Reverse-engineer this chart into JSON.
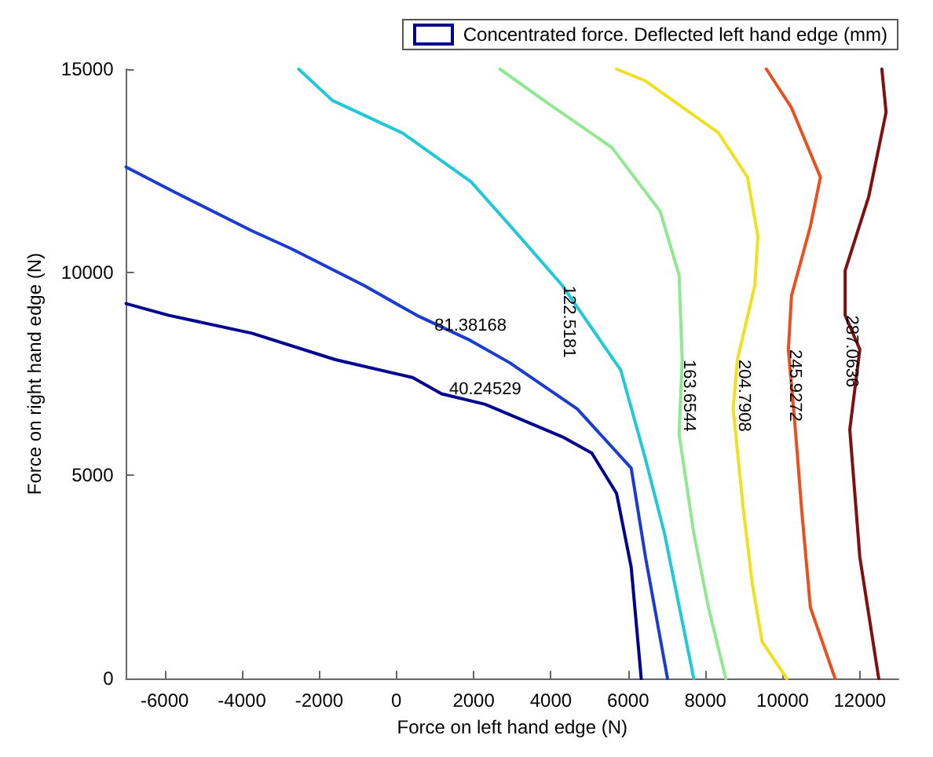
{
  "chart_data": {
    "type": "line",
    "xlabel": "Force on left hand edge (N)",
    "ylabel": "Force on right hand edge (N)",
    "legend_title": "Concentrated force. Deflected left hand edge (mm)",
    "legend": "top right",
    "xlim": [
      -7000,
      13000
    ],
    "xticks": [
      -6000,
      -4000,
      -2000,
      0,
      2000,
      4000,
      6000,
      8000,
      10000,
      12000
    ],
    "ylim": [
      0,
      15000
    ],
    "yticks": [
      0,
      5000,
      10000,
      15000
    ],
    "grid": false,
    "marker": "none",
    "line_style": "solid",
    "series": [
      {
        "name": "40.24529",
        "color": "#00008f",
        "x": [
          -7000,
          -5890,
          -3740,
          -1580,
          420,
          1170,
          2300,
          4300,
          5060,
          5700,
          6080,
          6340
        ],
        "values": [
          9230,
          8940,
          8500,
          7850,
          7410,
          7010,
          6750,
          5950,
          5550,
          4560,
          2740,
          0
        ]
      },
      {
        "name": "81.38168",
        "color": "#1a3cd0",
        "x": [
          -7000,
          -5740,
          -3740,
          -2720,
          -830,
          530,
          1920,
          2940,
          4680,
          6080,
          6450,
          7020
        ],
        "values": [
          12590,
          11970,
          11020,
          10580,
          9670,
          8940,
          8320,
          7770,
          6640,
          5180,
          2990,
          0
        ]
      },
      {
        "name": "122.5181",
        "color": "#20c8d8",
        "x": [
          -2530,
          -1660,
          150,
          1930,
          3060,
          4300,
          5810,
          6450,
          6940,
          7700
        ],
        "values": [
          15000,
          14230,
          13430,
          12230,
          11020,
          9670,
          7590,
          5400,
          3580,
          0
        ]
      },
      {
        "name": "163.6544",
        "color": "#90e890",
        "x": [
          2680,
          3920,
          5580,
          6830,
          7320,
          7400,
          7320,
          7700,
          8080,
          8530
        ],
        "values": [
          15000,
          14160,
          13070,
          11500,
          9930,
          7850,
          6020,
          3580,
          1750,
          0
        ]
      },
      {
        "name": "204.7908",
        "color": "#f0e020",
        "x": [
          5700,
          6450,
          8340,
          9090,
          9360,
          9280,
          8830,
          8720,
          8980,
          9210,
          9470,
          10110
        ],
        "values": [
          15000,
          14710,
          13430,
          12340,
          10880,
          9670,
          7850,
          6640,
          4200,
          2370,
          910,
          0
        ]
      },
      {
        "name": "245.9272",
        "color": "#e85020",
        "x": [
          9580,
          10230,
          10980,
          10720,
          10230,
          10150,
          10340,
          10490,
          10720,
          11360
        ],
        "values": [
          15000,
          14050,
          12340,
          11130,
          9420,
          8100,
          6020,
          4200,
          1750,
          0
        ]
      },
      {
        "name": "287.0636",
        "color": "#801010",
        "x": [
          12570,
          12680,
          12230,
          11620,
          11620,
          12000,
          11740,
          12000,
          12490
        ],
        "values": [
          15000,
          13940,
          11860,
          10040,
          8940,
          8100,
          6130,
          2990,
          0
        ]
      }
    ]
  }
}
